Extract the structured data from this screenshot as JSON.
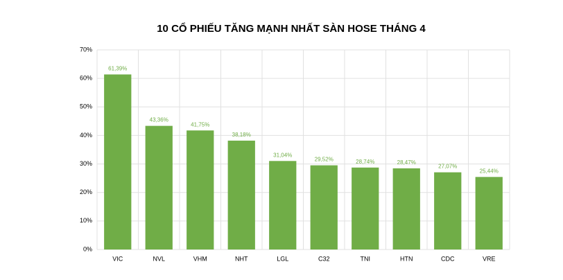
{
  "chart_data": {
    "type": "bar",
    "title": "10 CỔ PHIẾU TĂNG MẠNH NHẤT SÀN HOSE THÁNG 4",
    "categories": [
      "VIC",
      "NVL",
      "VHM",
      "NHT",
      "LGL",
      "C32",
      "TNI",
      "HTN",
      "CDC",
      "VRE"
    ],
    "values": [
      61.39,
      43.36,
      41.75,
      38.18,
      31.04,
      29.52,
      28.74,
      28.47,
      27.07,
      25.44
    ],
    "value_labels": [
      "61,39%",
      "43,36%",
      "41,75%",
      "38,18%",
      "31,04%",
      "29,52%",
      "28,74%",
      "28,47%",
      "27,07%",
      "25,44%"
    ],
    "color": "#70ad47",
    "ylim": [
      0,
      70
    ],
    "yticks": [
      {
        "value": 0,
        "label": "0%"
      },
      {
        "value": 10,
        "label": "10%"
      },
      {
        "value": 20,
        "label": "20%"
      },
      {
        "value": 30,
        "label": "30%"
      },
      {
        "value": 40,
        "label": "40%"
      },
      {
        "value": 50,
        "label": "50%"
      },
      {
        "value": 60,
        "label": "60%"
      },
      {
        "value": 70,
        "label": "70%"
      }
    ],
    "grid": true
  }
}
